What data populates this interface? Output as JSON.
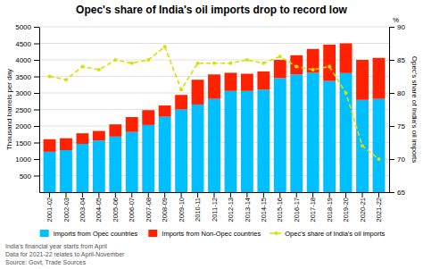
{
  "chart_data": {
    "type": "bar",
    "title": "Opec's share of India's oil imports drop to record low",
    "categories": [
      "2001-02",
      "2002-03",
      "2003-04",
      "2004-05",
      "2005-06",
      "2006-07",
      "2007-08",
      "2008-09",
      "2009-10",
      "2010-11",
      "2011-12",
      "2012-13",
      "2013-14",
      "2014-15",
      "2015-16",
      "2016-17",
      "2017-18",
      "2018-19",
      "2019-20",
      "2020-21",
      "2021-22"
    ],
    "stacked": true,
    "series": [
      {
        "name": "Imports from Opec countries",
        "color": "#00bfff",
        "values": [
          1220,
          1270,
          1460,
          1560,
          1680,
          1820,
          2030,
          2280,
          2500,
          2650,
          2820,
          3060,
          3060,
          3100,
          3450,
          3560,
          3610,
          3360,
          3600,
          2790,
          2820
        ]
      },
      {
        "name": "Imports from Non-Opec countries",
        "color": "#ff2200",
        "values": [
          380,
          360,
          320,
          290,
          370,
          450,
          450,
          340,
          440,
          750,
          740,
          550,
          520,
          550,
          550,
          580,
          720,
          1100,
          900,
          1210,
          1240
        ]
      },
      {
        "name": "Opec's share of India's oil imports",
        "type": "line",
        "axis": "y2",
        "color": "#dddd00",
        "line_style": "dashed",
        "marker": "circle",
        "values": [
          82.5,
          82.0,
          84.0,
          83.5,
          85.0,
          84.5,
          85.0,
          87.0,
          80.5,
          84.5,
          84.5,
          84.5,
          85.0,
          84.5,
          85.5,
          84.0,
          83.5,
          84.0,
          80.0,
          72.0,
          70.0
        ]
      }
    ],
    "ylabel": "Thousand barrels per day",
    "y2label": "Opec's share of India's oil imports",
    "ylim": [
      0,
      5000
    ],
    "yticks": [
      500,
      1000,
      1500,
      2000,
      2500,
      3000,
      3500,
      4000,
      4500,
      5000
    ],
    "y2lim": [
      65,
      90
    ],
    "y2ticks": [
      65,
      70,
      75,
      80,
      85,
      90
    ],
    "grid": true,
    "legend": "bottom",
    "annotations": [
      "%"
    ],
    "footnote": [
      "India's financial year starts from April",
      "Data for 2021-22 relates to April-November",
      "Source: Govt, Trade Sources"
    ]
  }
}
